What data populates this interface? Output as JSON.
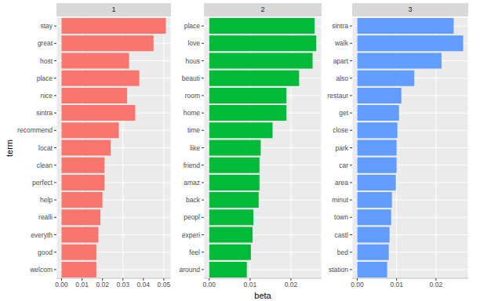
{
  "chart_data": [
    {
      "type": "bar",
      "orientation": "horizontal",
      "title": "1",
      "y_label": "term",
      "categories": [
        "stay",
        "great",
        "host",
        "place",
        "nice",
        "sintra",
        "recommend",
        "locat",
        "clean",
        "perfect",
        "help",
        "realli",
        "everyth",
        "good",
        "welcom"
      ],
      "values": [
        0.051,
        0.045,
        0.033,
        0.038,
        0.032,
        0.036,
        0.028,
        0.024,
        0.021,
        0.021,
        0.02,
        0.019,
        0.018,
        0.017,
        0.017
      ],
      "color": "#F8766D",
      "xlim": [
        -0.0025,
        0.0535
      ],
      "xticks": [
        {
          "value": 0,
          "label": "0.00"
        },
        0.01,
        0.02,
        0.03,
        0.04,
        0.05
      ],
      "grid": true
    },
    {
      "type": "bar",
      "orientation": "horizontal",
      "title": "2",
      "x_label": "beta",
      "categories": [
        "place",
        "love",
        "hous",
        "beauti",
        "room",
        "home",
        "time",
        "like",
        "friend",
        "amaz",
        "back",
        "peopl",
        "experi",
        "feel",
        "around"
      ],
      "values": [
        0.0258,
        0.0262,
        0.0253,
        0.022,
        0.0189,
        0.0189,
        0.0155,
        0.0126,
        0.0123,
        0.0123,
        0.0121,
        0.0108,
        0.0106,
        0.0102,
        0.0092
      ],
      "color": "#00BA38",
      "xlim": [
        -0.0013,
        0.0275
      ],
      "xticks": [
        {
          "value": 0,
          "label": "0.00"
        },
        0.01,
        0.02
      ],
      "grid": true
    },
    {
      "type": "bar",
      "orientation": "horizontal",
      "title": "3",
      "categories": [
        "sintra",
        "walk",
        "apart",
        "also",
        "restaur",
        "get",
        "close",
        "park",
        "car",
        "area",
        "minut",
        "town",
        "castl",
        "bed",
        "station"
      ],
      "values": [
        0.0245,
        0.0269,
        0.0214,
        0.0145,
        0.0112,
        0.0106,
        0.0102,
        0.01,
        0.01,
        0.0098,
        0.0088,
        0.0086,
        0.0082,
        0.008,
        0.0076
      ],
      "color": "#619CFF",
      "xlim": [
        -0.0013,
        0.0282
      ],
      "xticks": [
        {
          "value": 0,
          "label": "0.00"
        },
        0.01,
        0.02
      ],
      "grid": true
    }
  ]
}
